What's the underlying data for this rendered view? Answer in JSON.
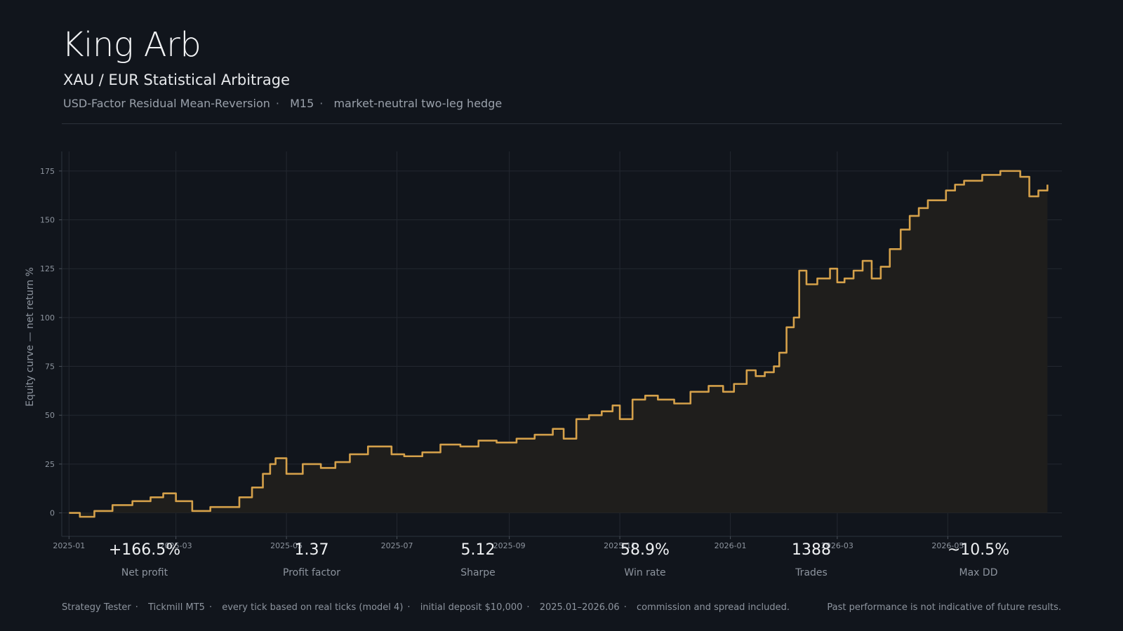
{
  "header": {
    "title": "King Arb",
    "subtitle": "XAU / EUR Statistical Arbitrage",
    "tags": [
      "USD-Factor Residual Mean-Reversion",
      "M15",
      "market-neutral two-leg hedge"
    ]
  },
  "colors": {
    "background": "#11151c",
    "line": "#d4a04a",
    "fill": "#1f1e1c",
    "grid": "#232830"
  },
  "chart_data": {
    "type": "area",
    "ylabel": "Equity curve — net return %",
    "xlabel": "",
    "xlim": [
      "2024-12-28",
      "2026-07-03"
    ],
    "ylim": [
      -12,
      185
    ],
    "yticks": [
      0,
      25,
      50,
      75,
      100,
      125,
      150,
      175
    ],
    "xticks": [
      "2025-01",
      "2025-03",
      "2025-05",
      "2025-07",
      "2025-09",
      "2025-11",
      "2026-01",
      "2026-03",
      "2026-05"
    ],
    "grid": true,
    "series": [
      {
        "x": [
          "2025-01-01",
          "2025-01-07",
          "2025-01-15",
          "2025-01-25",
          "2025-02-05",
          "2025-02-15",
          "2025-02-22",
          "2025-03-01",
          "2025-03-10",
          "2025-03-20",
          "2025-03-28",
          "2025-04-05",
          "2025-04-12",
          "2025-04-18",
          "2025-04-22",
          "2025-04-25",
          "2025-05-01",
          "2025-05-10",
          "2025-05-20",
          "2025-05-28",
          "2025-06-05",
          "2025-06-15",
          "2025-06-22",
          "2025-06-28",
          "2025-07-05",
          "2025-07-15",
          "2025-07-25",
          "2025-08-05",
          "2025-08-15",
          "2025-08-25",
          "2025-09-05",
          "2025-09-15",
          "2025-09-25",
          "2025-10-01",
          "2025-10-08",
          "2025-10-15",
          "2025-10-22",
          "2025-10-28",
          "2025-11-01",
          "2025-11-08",
          "2025-11-15",
          "2025-11-22",
          "2025-12-01",
          "2025-12-10",
          "2025-12-20",
          "2025-12-28",
          "2026-01-03",
          "2026-01-10",
          "2026-01-15",
          "2026-01-20",
          "2026-01-25",
          "2026-01-28",
          "2026-02-01",
          "2026-02-05",
          "2026-02-08",
          "2026-02-12",
          "2026-02-18",
          "2026-02-25",
          "2026-03-01",
          "2026-03-05",
          "2026-03-10",
          "2026-03-15",
          "2026-03-20",
          "2026-03-25",
          "2026-03-30",
          "2026-04-05",
          "2026-04-10",
          "2026-04-15",
          "2026-04-20",
          "2026-04-30",
          "2026-05-05",
          "2026-05-10",
          "2026-05-20",
          "2026-05-30",
          "2026-06-05",
          "2026-06-10",
          "2026-06-15",
          "2026-06-20",
          "2026-06-25"
        ],
        "values": [
          0,
          -2,
          1,
          4,
          6,
          8,
          10,
          6,
          1,
          3,
          3,
          8,
          13,
          20,
          25,
          28,
          20,
          25,
          23,
          26,
          30,
          34,
          34,
          30,
          29,
          31,
          35,
          34,
          37,
          36,
          38,
          40,
          43,
          38,
          48,
          50,
          52,
          55,
          48,
          58,
          60,
          58,
          56,
          62,
          65,
          62,
          66,
          73,
          70,
          72,
          75,
          82,
          95,
          100,
          124,
          117,
          120,
          125,
          118,
          120,
          124,
          129,
          120,
          126,
          135,
          145,
          152,
          156,
          160,
          165,
          168,
          170,
          173,
          175,
          175,
          172,
          162,
          165,
          168
        ]
      }
    ]
  },
  "stats": [
    {
      "value": "+166.5%",
      "label": "Net profit"
    },
    {
      "value": "1.37",
      "label": "Profit factor"
    },
    {
      "value": "5.12",
      "label": "Sharpe"
    },
    {
      "value": "58.9%",
      "label": "Win rate"
    },
    {
      "value": "1388",
      "label": "Trades"
    },
    {
      "value": "~10.5%",
      "label": "Max DD"
    }
  ],
  "footer": {
    "items": [
      "Strategy Tester",
      "Tickmill MT5",
      "every tick based on real ticks (model 4)",
      "initial deposit $10,000",
      "2025.01–2026.06",
      "commission and spread included."
    ],
    "disclaimer": "Past performance is not indicative of future results."
  }
}
